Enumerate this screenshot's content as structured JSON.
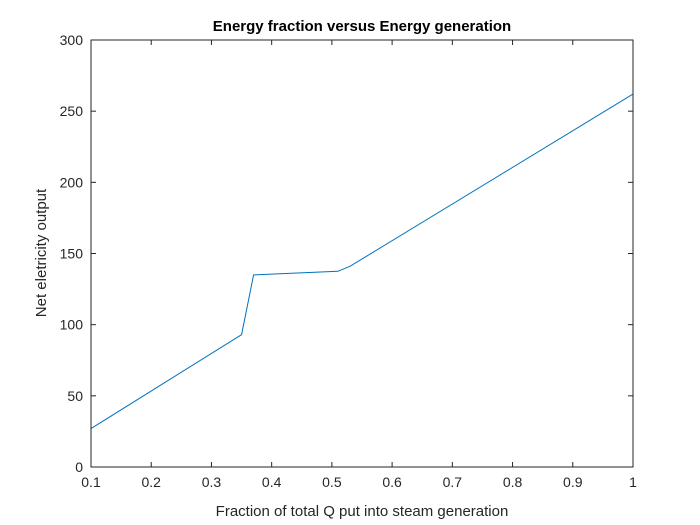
{
  "chart_data": {
    "type": "line",
    "title": "Energy fraction versus Energy generation",
    "xlabel": "Fraction of total Q put into steam generation",
    "ylabel": "Net eletricity output",
    "xlim": [
      0.1,
      1
    ],
    "ylim": [
      0,
      300
    ],
    "xticks": [
      0.1,
      0.2,
      0.3,
      0.4,
      0.5,
      0.6,
      0.7,
      0.8,
      0.9,
      1
    ],
    "xtick_labels": [
      "0.1",
      "0.2",
      "0.3",
      "0.4",
      "0.5",
      "0.6",
      "0.7",
      "0.8",
      "0.9",
      "1"
    ],
    "yticks": [
      0,
      50,
      100,
      150,
      200,
      250,
      300
    ],
    "ytick_labels": [
      "0",
      "50",
      "100",
      "150",
      "200",
      "250",
      "300"
    ],
    "grid": false,
    "line_color": "#0072BD",
    "series": [
      {
        "x": [
          0.1,
          0.35,
          0.37,
          0.51,
          0.53,
          1.0
        ],
        "y": [
          27,
          93,
          135,
          137.5,
          141,
          262
        ]
      }
    ]
  }
}
